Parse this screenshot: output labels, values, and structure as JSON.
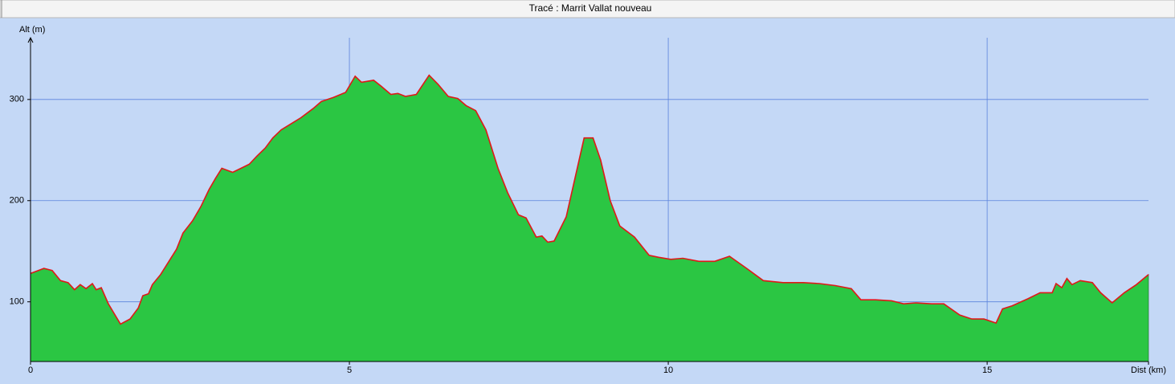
{
  "chart_data": {
    "type": "area",
    "title": "Tracé : Marrit Vallat nouveau",
    "y_label": "Alt (m)",
    "x_label": "Dist (km)",
    "x": [
      0,
      0.21,
      0.34,
      0.47,
      0.59,
      0.69,
      0.78,
      0.87,
      0.97,
      1.03,
      1.11,
      1.22,
      1.41,
      1.56,
      1.69,
      1.76,
      1.85,
      1.91,
      2.04,
      2.17,
      2.29,
      2.39,
      2.54,
      2.67,
      2.8,
      2.9,
      3.0,
      3.17,
      3.3,
      3.43,
      3.55,
      3.68,
      3.8,
      3.93,
      4.06,
      4.24,
      4.43,
      4.56,
      4.75,
      4.94,
      5.09,
      5.19,
      5.38,
      5.5,
      5.65,
      5.76,
      5.88,
      6.05,
      6.25,
      6.39,
      6.55,
      6.7,
      6.83,
      6.98,
      7.14,
      7.33,
      7.48,
      7.65,
      7.77,
      7.93,
      8.02,
      8.11,
      8.21,
      8.4,
      8.53,
      8.68,
      8.82,
      8.94,
      9.09,
      9.24,
      9.47,
      9.7,
      9.85,
      10.04,
      10.23,
      10.48,
      10.73,
      10.96,
      11.23,
      11.49,
      11.8,
      12.12,
      12.37,
      12.62,
      12.87,
      13.02,
      13.25,
      13.5,
      13.69,
      13.88,
      14.13,
      14.32,
      14.57,
      14.76,
      14.95,
      15.14,
      15.24,
      15.39,
      15.64,
      15.83,
      16.02,
      16.08,
      16.17,
      16.25,
      16.33,
      16.46,
      16.65,
      16.78,
      16.96,
      17.15,
      17.34,
      17.53
    ],
    "values": [
      128,
      133,
      131,
      121,
      119,
      112,
      117,
      113,
      118,
      112,
      114,
      98,
      78,
      83,
      94,
      106,
      108,
      117,
      127,
      140,
      152,
      168,
      180,
      194,
      211,
      222,
      232,
      228,
      232,
      236,
      244,
      252,
      262,
      270,
      275,
      282,
      291,
      298,
      302,
      307,
      323,
      317,
      319,
      313,
      305,
      306,
      303,
      305,
      324,
      315,
      303,
      301,
      294,
      289,
      270,
      232,
      208,
      186,
      183,
      164,
      165,
      159,
      160,
      184,
      220,
      262,
      262,
      240,
      200,
      175,
      164,
      146,
      144,
      142,
      143,
      140,
      140,
      145,
      133,
      121,
      119,
      119,
      118,
      116,
      113,
      102,
      102,
      101,
      98,
      99,
      98,
      98,
      87,
      83,
      83,
      79,
      93,
      96,
      103,
      109,
      109,
      118,
      114,
      123,
      117,
      121,
      119,
      109,
      99,
      109,
      117,
      127
    ],
    "color": "#2bc643",
    "line_color": "#e01818",
    "grid_color": "#5a82dc",
    "xlim": [
      0,
      17.53
    ],
    "ylim": [
      41,
      361
    ],
    "xticks": [
      0,
      5,
      10,
      15
    ],
    "yticks": [
      100,
      200,
      300
    ],
    "grid": true
  }
}
